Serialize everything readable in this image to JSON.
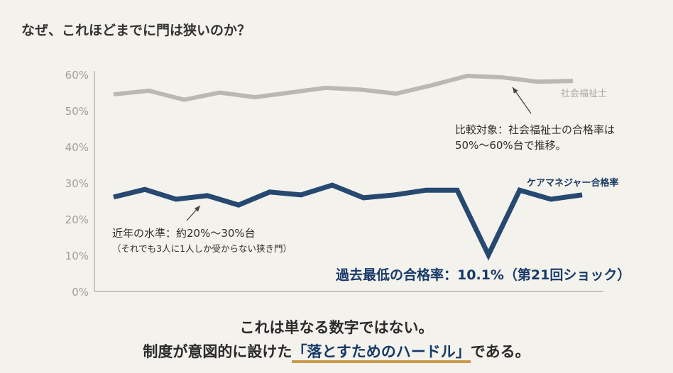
{
  "title": "なぜ、これほどまでに門は狭いのか？",
  "chart_data": {
    "type": "line",
    "ylim": [
      0,
      60
    ],
    "yticks": [
      "0%",
      "10%",
      "20%",
      "30%",
      "40%",
      "50%",
      "60%"
    ],
    "grid": false,
    "series": [
      {
        "name": "社会福祉士",
        "color": "#b5b3ae",
        "values": [
          54.5,
          55.5,
          53.0,
          55.0,
          53.7,
          55.0,
          56.3,
          55.8,
          54.7,
          57.0,
          59.6,
          59.2,
          58.0,
          58.2
        ]
      },
      {
        "name": "ケアマネジャー合格率",
        "color": "#143a66",
        "values": [
          26.1,
          28.2,
          25.5,
          26.5,
          23.9,
          27.5,
          26.7,
          29.4,
          25.9,
          26.7,
          28.0,
          28.0,
          10.1,
          28.0,
          25.5,
          26.7
        ]
      }
    ],
    "annotations": {
      "recent_line1": "近年の水準：約20%〜30%台",
      "recent_line2": "（それでも3人に1人しか受からない狭き門）",
      "compare_line1": "比較対象：社会福祉士の合格率は",
      "compare_line2": "50%〜60%台で推移。",
      "lowest": "過去最低の合格率：10.1%（第21回ショック）"
    }
  },
  "message": {
    "line1": "これは単なる数字ではない。",
    "line2_pre": "制度が意図的に設けた",
    "line2_highlight": "「落とすためのハードル」",
    "line2_post": "である。"
  }
}
